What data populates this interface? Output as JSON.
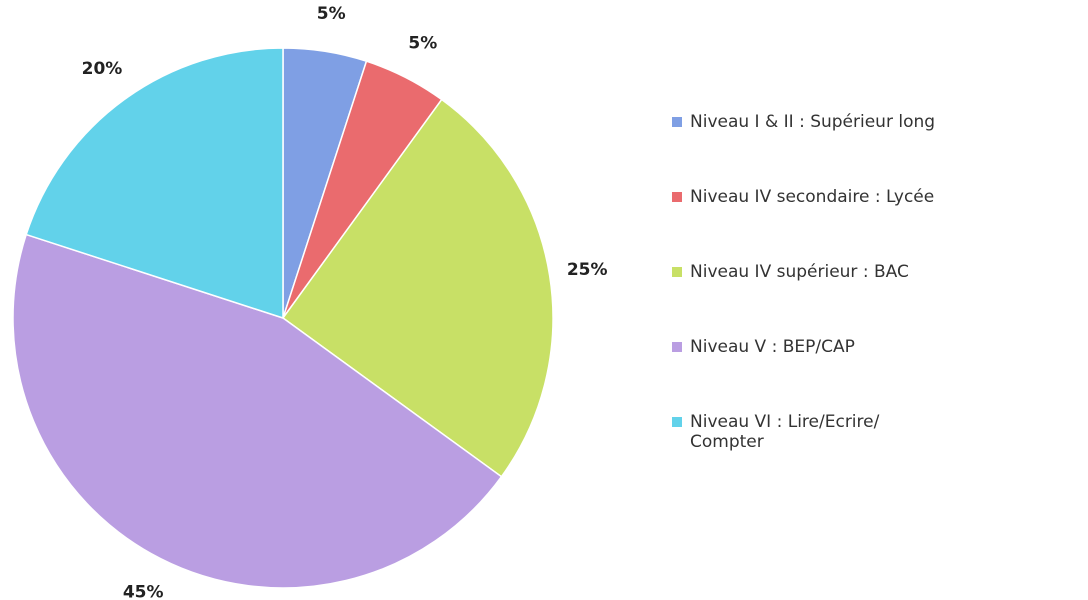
{
  "chart_data": {
    "type": "pie",
    "categories": [
      "Niveau I & II : Supérieur long",
      "Niveau IV secondaire : Lycée",
      "Niveau IV supérieur : BAC",
      "Niveau V : BEP/CAP",
      "Niveau VI : Lire/Ecrire/ Compter"
    ],
    "values": [
      5,
      5,
      25,
      45,
      20
    ],
    "value_labels": [
      "5%",
      "5%",
      "25%",
      "45%",
      "20%"
    ],
    "colors": [
      "#7f9fe4",
      "#ea6b6e",
      "#c8e066",
      "#ba9ee2",
      "#62d2ea"
    ],
    "legend": "right"
  }
}
